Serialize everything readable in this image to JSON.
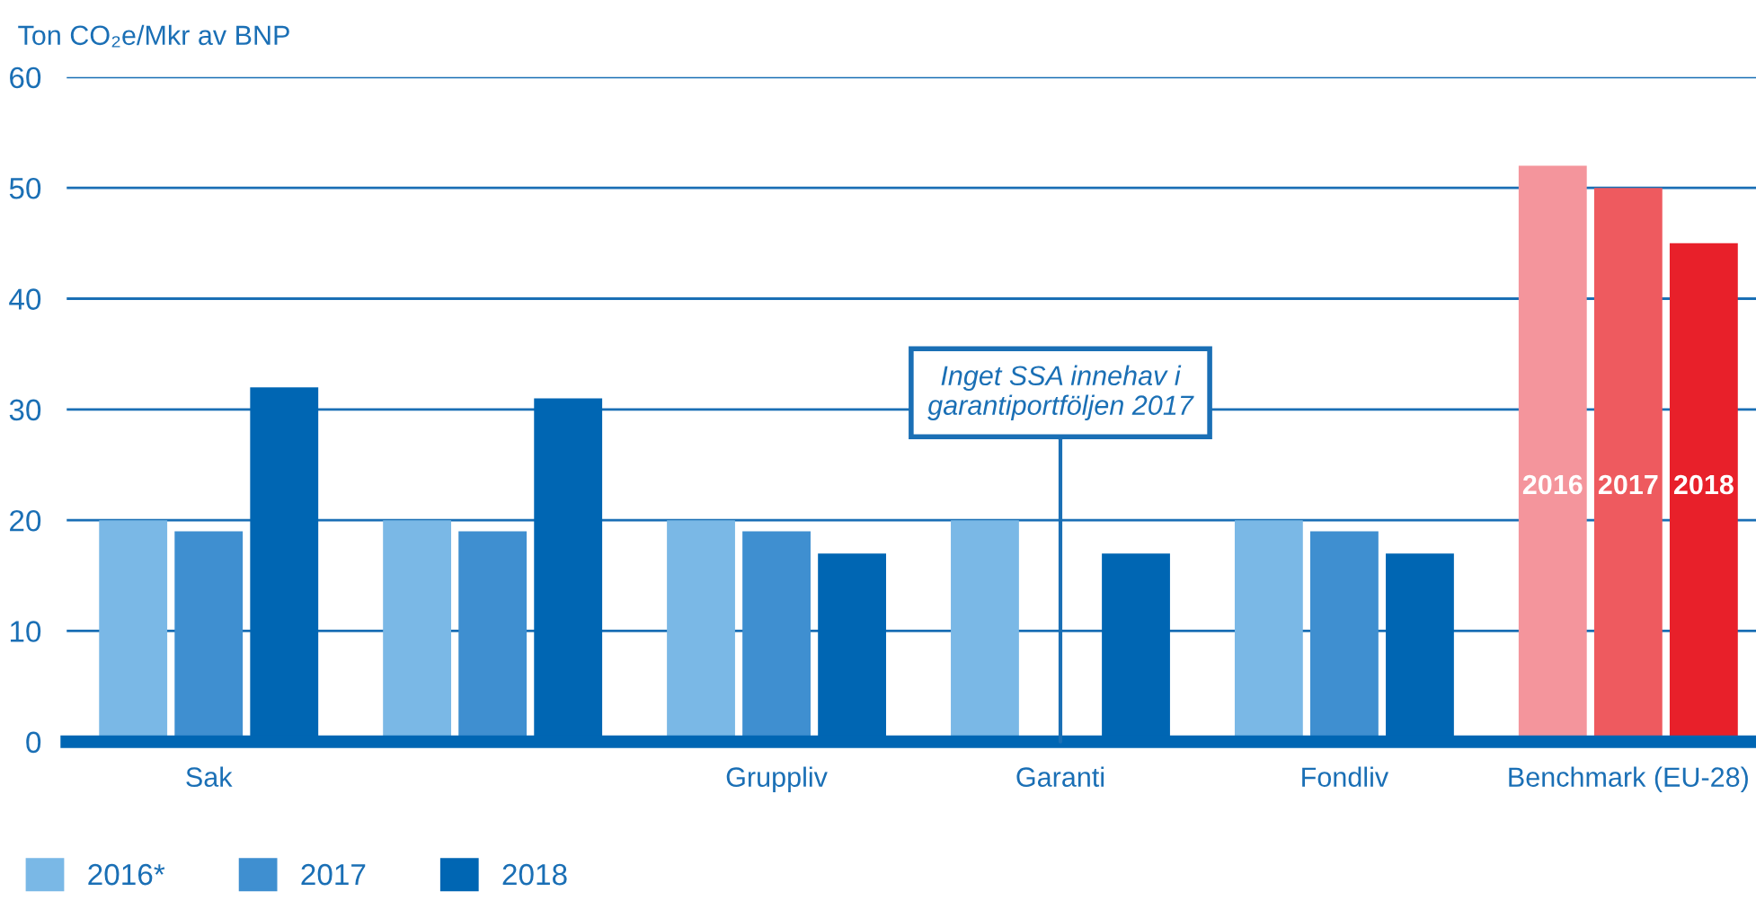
{
  "chart_data": {
    "type": "bar",
    "ylabel": "Ton CO₂e/Mkr av BNP",
    "categories": [
      "Sak",
      null,
      "Gruppliv",
      "Garanti",
      "Fondliv",
      "Benchmark (EU-28)"
    ],
    "series": [
      {
        "name": "2016*",
        "color": "#7ab8e6",
        "colors": [
          "#7ab8e6",
          "#7ab8e6",
          "#7ab8e6",
          "#7ab8e6",
          "#7ab8e6",
          "#f4959c"
        ],
        "values": [
          20,
          20,
          20,
          20,
          20,
          52
        ]
      },
      {
        "name": "2017",
        "color": "#3f8fd0",
        "colors": [
          "#3f8fd0",
          "#3f8fd0",
          "#3f8fd0",
          "#3f8fd0",
          "#3f8fd0",
          "#ee5a5f"
        ],
        "values": [
          19,
          19,
          19,
          null,
          19,
          50
        ]
      },
      {
        "name": "2018",
        "color": "#0066b3",
        "colors": [
          "#0066b3",
          "#0066b3",
          "#0066b3",
          "#0066b3",
          "#0066b3",
          "#e8202a"
        ],
        "values": [
          32,
          31,
          17,
          17,
          17,
          45
        ]
      }
    ],
    "ylim": [
      0,
      60
    ],
    "yticks": [
      0,
      10,
      20,
      30,
      40,
      50,
      60
    ],
    "grid": "y",
    "legend": "bottom left",
    "annotations": [
      "Inget SSA innehav i\ngarantiportföljen 2017",
      "2016",
      "2017",
      "2018"
    ]
  }
}
